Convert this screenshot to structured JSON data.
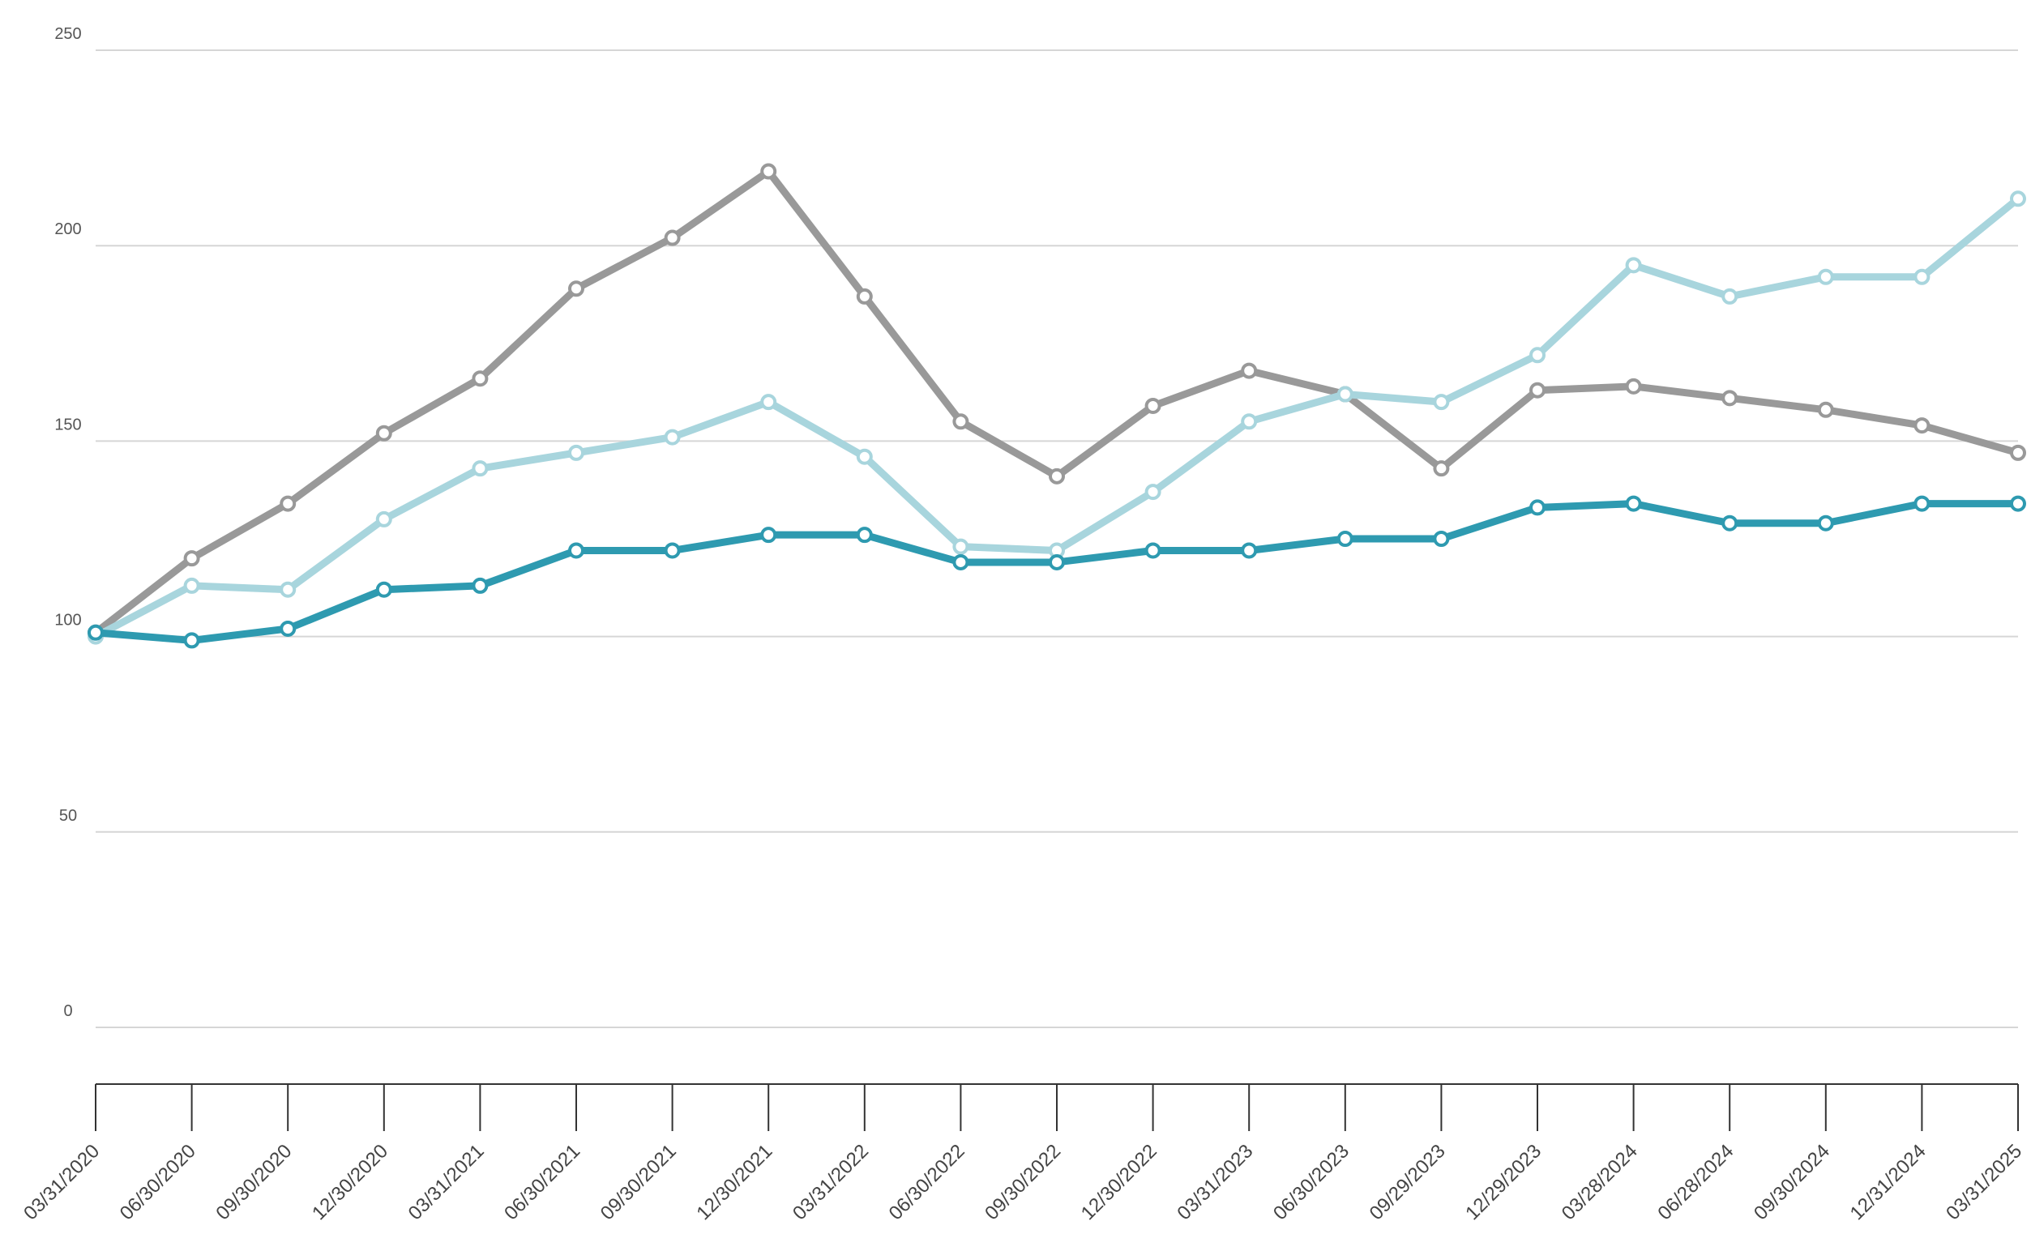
{
  "chart_data": {
    "type": "line",
    "title": "",
    "xlabel": "",
    "ylabel": "",
    "ylim": [
      0,
      250
    ],
    "yticks": [
      0,
      50,
      100,
      150,
      200,
      250
    ],
    "grid": true,
    "legend": "none",
    "categories": [
      "03/31/2020",
      "06/30/2020",
      "09/30/2020",
      "12/30/2020",
      "03/31/2021",
      "06/30/2021",
      "09/30/2021",
      "12/30/2021",
      "03/31/2022",
      "06/30/2022",
      "09/30/2022",
      "12/30/2022",
      "03/31/2023",
      "06/30/2023",
      "09/29/2023",
      "12/29/2023",
      "03/28/2024",
      "06/28/2024",
      "09/30/2024",
      "12/31/2024",
      "03/31/2025"
    ],
    "series": [
      {
        "color": "#999999",
        "values": [
          101,
          120,
          134,
          152,
          166,
          189,
          202,
          219,
          187,
          155,
          141,
          159,
          168,
          162,
          143,
          163,
          164,
          161,
          158,
          154,
          147
        ]
      },
      {
        "color": "#a8d5dd",
        "values": [
          100,
          113,
          112,
          130,
          143,
          147,
          151,
          160,
          146,
          123,
          122,
          137,
          155,
          162,
          160,
          172,
          195,
          187,
          192,
          192,
          212
        ]
      },
      {
        "color": "#2e9ab0",
        "values": [
          101,
          99,
          102,
          112,
          113,
          122,
          122,
          126,
          126,
          119,
          119,
          122,
          122,
          125,
          125,
          133,
          134,
          129,
          129,
          134,
          134
        ]
      }
    ]
  }
}
